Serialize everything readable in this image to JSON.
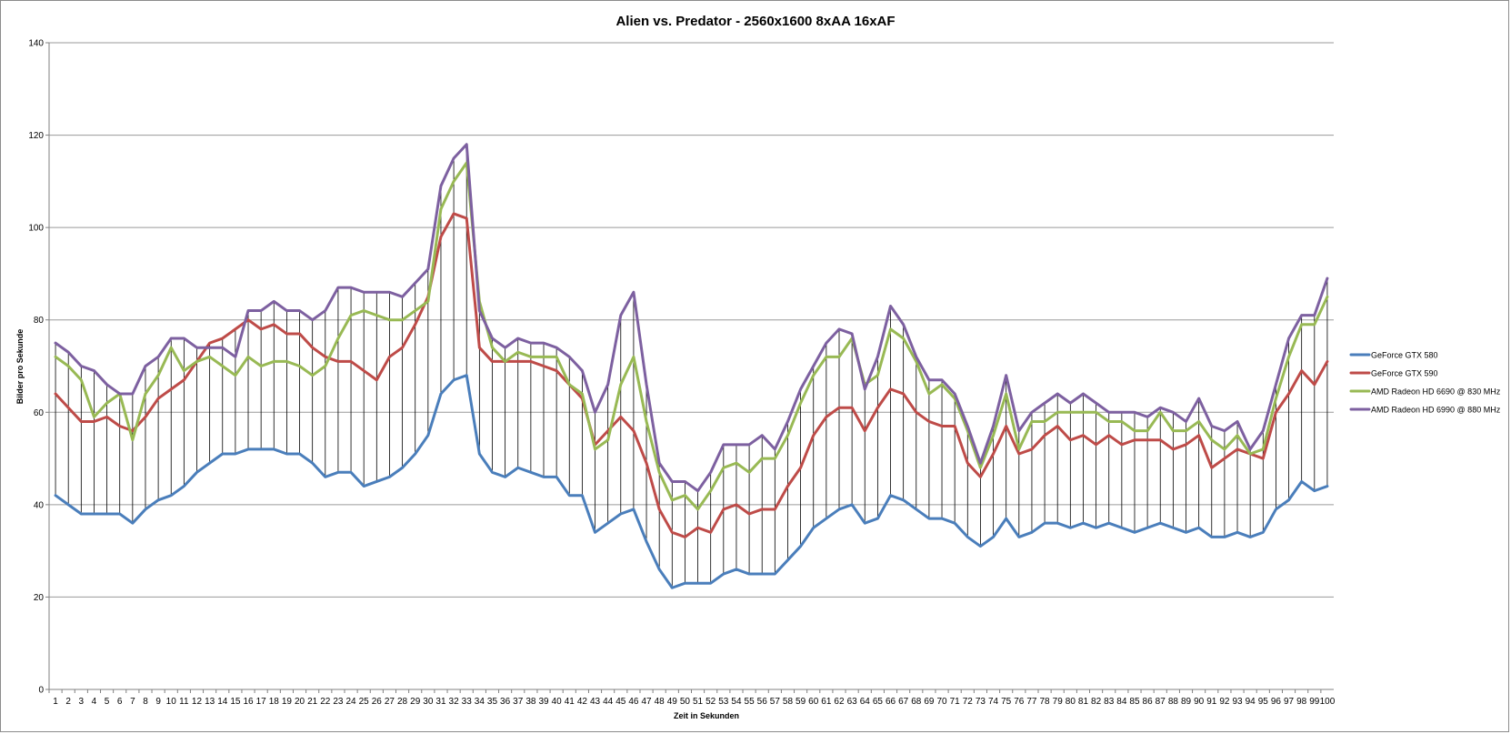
{
  "chart_data": {
    "type": "line",
    "title": "Alien vs. Predator - 2560x1600 8xAA 16xAF",
    "xlabel": "Zeit in Sekunden",
    "ylabel": "Bilder pro Sekunde",
    "ylim": [
      0,
      140
    ],
    "yticks": [
      0,
      20,
      40,
      60,
      80,
      100,
      120,
      140
    ],
    "grid": true,
    "hi_lo_lines": true,
    "legend_position": "right",
    "x": [
      1,
      2,
      3,
      4,
      5,
      6,
      7,
      8,
      9,
      10,
      11,
      12,
      13,
      14,
      15,
      16,
      17,
      18,
      19,
      20,
      21,
      22,
      23,
      24,
      25,
      26,
      27,
      28,
      29,
      30,
      31,
      32,
      33,
      34,
      35,
      36,
      37,
      38,
      39,
      40,
      41,
      42,
      43,
      44,
      45,
      46,
      47,
      48,
      49,
      50,
      51,
      52,
      53,
      54,
      55,
      56,
      57,
      58,
      59,
      60,
      61,
      62,
      63,
      64,
      65,
      66,
      67,
      68,
      69,
      70,
      71,
      72,
      73,
      74,
      75,
      76,
      77,
      78,
      79,
      80,
      81,
      82,
      83,
      84,
      85,
      86,
      87,
      88,
      89,
      90,
      91,
      92,
      93,
      94,
      95,
      96,
      97,
      98,
      99,
      100
    ],
    "series": [
      {
        "name": "GeForce GTX 580",
        "color": "#4a7ebb",
        "values": [
          42,
          40,
          38,
          38,
          38,
          38,
          36,
          39,
          41,
          42,
          44,
          47,
          49,
          51,
          51,
          52,
          52,
          52,
          51,
          51,
          49,
          46,
          47,
          47,
          44,
          45,
          46,
          48,
          51,
          55,
          64,
          67,
          68,
          51,
          47,
          46,
          48,
          47,
          46,
          46,
          42,
          42,
          34,
          36,
          38,
          39,
          32,
          26,
          22,
          23,
          23,
          23,
          25,
          26,
          25,
          25,
          25,
          28,
          31,
          35,
          37,
          39,
          40,
          36,
          37,
          42,
          41,
          39,
          37,
          37,
          36,
          33,
          31,
          33,
          37,
          33,
          34,
          36,
          36,
          35,
          36,
          35,
          36,
          35,
          34,
          35,
          36,
          35,
          34,
          35,
          33,
          33,
          34,
          33,
          34,
          39,
          41,
          45,
          43,
          44
        ]
      },
      {
        "name": "GeForce GTX 590",
        "color": "#be4b48",
        "values": [
          64,
          61,
          58,
          58,
          59,
          57,
          56,
          59,
          63,
          65,
          67,
          71,
          75,
          76,
          78,
          80,
          78,
          79,
          77,
          77,
          74,
          72,
          71,
          71,
          69,
          67,
          72,
          74,
          79,
          85,
          98,
          103,
          102,
          74,
          71,
          71,
          71,
          71,
          70,
          69,
          66,
          63,
          53,
          56,
          59,
          56,
          49,
          39,
          34,
          33,
          35,
          34,
          39,
          40,
          38,
          39,
          39,
          44,
          48,
          55,
          59,
          61,
          61,
          56,
          61,
          65,
          64,
          60,
          58,
          57,
          57,
          49,
          46,
          51,
          57,
          51,
          52,
          55,
          57,
          54,
          55,
          53,
          55,
          53,
          54,
          54,
          54,
          52,
          53,
          55,
          48,
          50,
          52,
          51,
          50,
          60,
          64,
          69,
          66,
          71
        ]
      },
      {
        "name": "AMD Radeon HD 6690 @ 830 MHz",
        "color": "#98b954",
        "values": [
          72,
          70,
          67,
          59,
          62,
          64,
          54,
          64,
          68,
          74,
          69,
          71,
          72,
          70,
          68,
          72,
          70,
          71,
          71,
          70,
          68,
          70,
          76,
          81,
          82,
          81,
          80,
          80,
          82,
          84,
          104,
          110,
          114,
          84,
          74,
          71,
          73,
          72,
          72,
          72,
          66,
          64,
          52,
          54,
          66,
          72,
          58,
          47,
          41,
          42,
          39,
          43,
          48,
          49,
          47,
          50,
          50,
          55,
          62,
          68,
          72,
          72,
          76,
          66,
          68,
          78,
          76,
          71,
          64,
          66,
          63,
          56,
          48,
          55,
          64,
          52,
          58,
          58,
          60,
          60,
          60,
          60,
          58,
          58,
          56,
          56,
          60,
          56,
          56,
          58,
          54,
          52,
          55,
          51,
          52,
          63,
          72,
          79,
          79,
          85
        ]
      },
      {
        "name": "AMD Radeon HD 6990 @ 880 MHz",
        "color": "#7d60a0",
        "values": [
          75,
          73,
          70,
          69,
          66,
          64,
          64,
          70,
          72,
          76,
          76,
          74,
          74,
          74,
          72,
          82,
          82,
          84,
          82,
          82,
          80,
          82,
          87,
          87,
          86,
          86,
          86,
          85,
          88,
          91,
          109,
          115,
          118,
          82,
          76,
          74,
          76,
          75,
          75,
          74,
          72,
          69,
          60,
          66,
          81,
          86,
          66,
          49,
          45,
          45,
          43,
          47,
          53,
          53,
          53,
          55,
          52,
          58,
          65,
          70,
          75,
          78,
          77,
          65,
          72,
          83,
          79,
          72,
          67,
          67,
          64,
          57,
          49,
          57,
          68,
          56,
          60,
          62,
          64,
          62,
          64,
          62,
          60,
          60,
          60,
          59,
          61,
          60,
          58,
          63,
          57,
          56,
          58,
          52,
          56,
          66,
          76,
          81,
          81,
          89
        ]
      }
    ]
  }
}
